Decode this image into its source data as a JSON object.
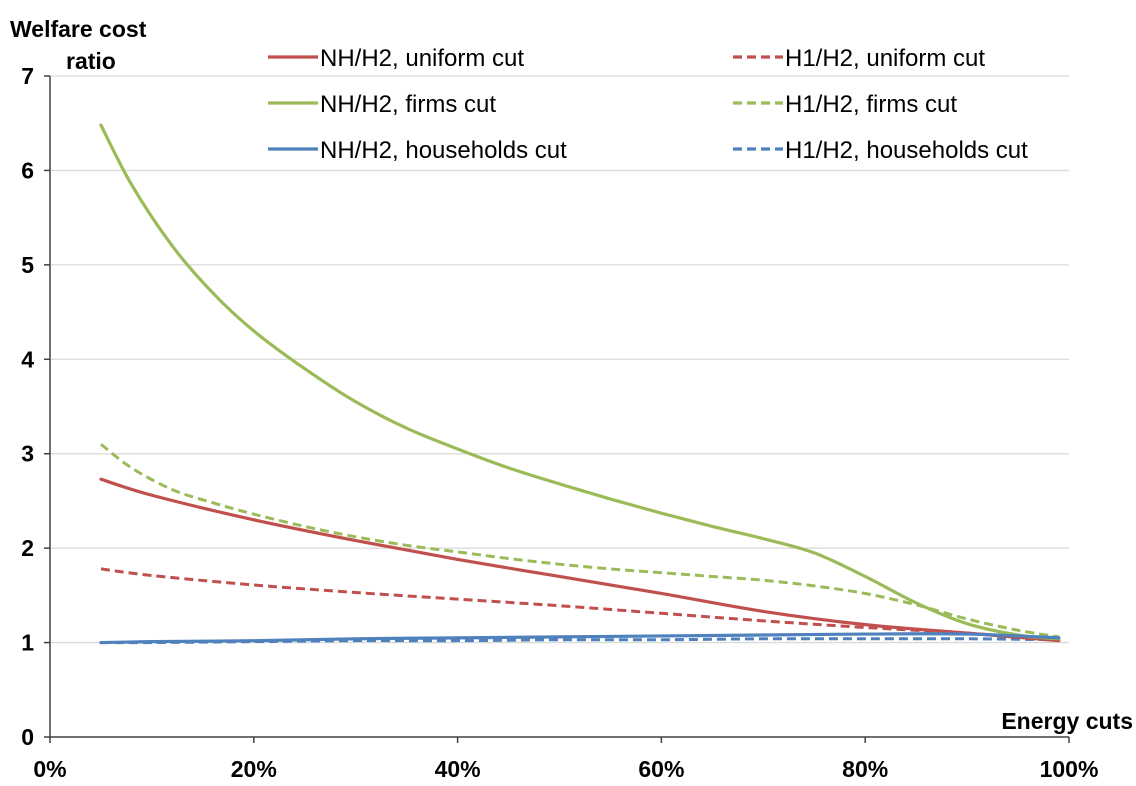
{
  "chart_data": {
    "type": "line",
    "title": "",
    "ylabel_line1": "Welfare cost",
    "ylabel_line2": "ratio",
    "xlabel": "Energy cuts",
    "xlim": [
      0,
      100
    ],
    "ylim": [
      0,
      7
    ],
    "x_ticks": [
      0,
      20,
      40,
      60,
      80,
      100
    ],
    "x_tick_labels": [
      "0%",
      "20%",
      "40%",
      "60%",
      "80%",
      "100%"
    ],
    "y_ticks": [
      0,
      1,
      2,
      3,
      4,
      5,
      6,
      7
    ],
    "y_tick_labels": [
      "0",
      "1",
      "2",
      "3",
      "4",
      "5",
      "6",
      "7"
    ],
    "grid": "horizontal",
    "legend_position": "top",
    "series": [
      {
        "name": "NH/H2, uniform cut",
        "color": "#c0504d",
        "dash": "solid",
        "x": [
          5,
          10,
          20,
          30,
          40,
          50,
          60,
          70,
          80,
          90,
          99
        ],
        "y": [
          2.73,
          2.56,
          2.3,
          2.08,
          1.88,
          1.7,
          1.52,
          1.33,
          1.19,
          1.1,
          1.02
        ]
      },
      {
        "name": "NH/H2, firms cut",
        "color": "#9bbb59",
        "dash": "solid",
        "x": [
          5,
          8,
          12,
          16,
          20,
          25,
          30,
          35,
          40,
          45,
          50,
          55,
          60,
          65,
          70,
          75,
          80,
          85,
          90,
          95,
          99
        ],
        "y": [
          6.48,
          5.85,
          5.2,
          4.7,
          4.3,
          3.9,
          3.55,
          3.27,
          3.05,
          2.85,
          2.68,
          2.52,
          2.37,
          2.23,
          2.1,
          1.95,
          1.7,
          1.42,
          1.2,
          1.08,
          1.04
        ]
      },
      {
        "name": "NH/H2, households cut",
        "color": "#4f81bd",
        "dash": "solid",
        "x": [
          5,
          10,
          20,
          30,
          40,
          50,
          60,
          70,
          80,
          90,
          99
        ],
        "y": [
          1.0,
          1.01,
          1.02,
          1.04,
          1.05,
          1.06,
          1.07,
          1.08,
          1.09,
          1.09,
          1.05
        ]
      },
      {
        "name": "H1/H2, uniform cut",
        "color": "#c0504d",
        "dash": "dashed",
        "x": [
          5,
          10,
          20,
          30,
          40,
          50,
          60,
          70,
          80,
          90,
          99
        ],
        "y": [
          1.78,
          1.71,
          1.61,
          1.53,
          1.46,
          1.39,
          1.31,
          1.23,
          1.16,
          1.1,
          1.03
        ]
      },
      {
        "name": "H1/H2, firms cut",
        "color": "#9bbb59",
        "dash": "dashed",
        "x": [
          5,
          8,
          12,
          16,
          20,
          25,
          30,
          35,
          40,
          45,
          50,
          55,
          60,
          65,
          70,
          75,
          80,
          85,
          90,
          95,
          99
        ],
        "y": [
          3.1,
          2.85,
          2.62,
          2.48,
          2.36,
          2.23,
          2.12,
          2.03,
          1.96,
          1.89,
          1.83,
          1.78,
          1.74,
          1.7,
          1.66,
          1.6,
          1.52,
          1.4,
          1.25,
          1.13,
          1.06
        ]
      },
      {
        "name": "H1/H2, households cut",
        "color": "#4f81bd",
        "dash": "dashed",
        "x": [
          5,
          10,
          20,
          30,
          40,
          50,
          60,
          70,
          80,
          90,
          99
        ],
        "y": [
          1.0,
          1.0,
          1.01,
          1.02,
          1.02,
          1.03,
          1.03,
          1.04,
          1.04,
          1.04,
          1.03
        ]
      }
    ]
  }
}
